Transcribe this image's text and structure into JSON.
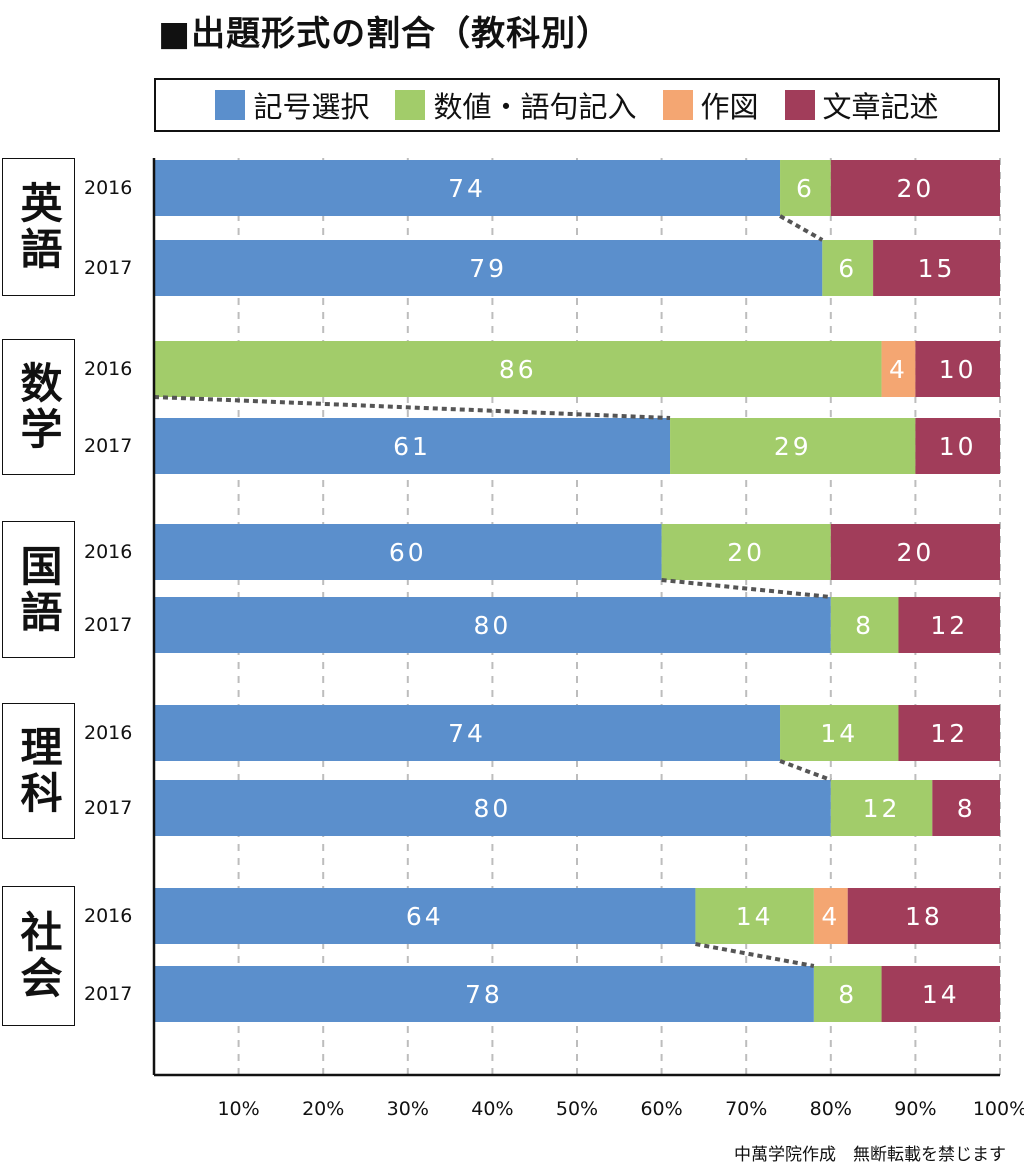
{
  "title": "■出題形式の割合（教科別）",
  "footer": "中萬学院作成　無断転載を禁じます",
  "legend": [
    {
      "label": "記号選択",
      "color": "#5B8FCC"
    },
    {
      "label": "数値・語句記入",
      "color": "#A2CC6A"
    },
    {
      "label": "作図",
      "color": "#F4A672"
    },
    {
      "label": "文章記述",
      "color": "#A13D5A"
    }
  ],
  "subjects": [
    {
      "name": "英語",
      "years": [
        "2016",
        "2017"
      ]
    },
    {
      "name": "数学",
      "years": [
        "2016",
        "2017"
      ]
    },
    {
      "name": "国語",
      "years": [
        "2016",
        "2017"
      ]
    },
    {
      "name": "理科",
      "years": [
        "2016",
        "2017"
      ]
    },
    {
      "name": "社会",
      "years": [
        "2016",
        "2017"
      ]
    }
  ],
  "chart_data": {
    "type": "bar",
    "orientation": "horizontal",
    "stacked": true,
    "xlim": [
      0,
      100
    ],
    "x_ticks": [
      "10%",
      "20%",
      "30%",
      "40%",
      "50%",
      "60%",
      "70%",
      "80%",
      "90%",
      "100%"
    ],
    "grid": "vertical dashed",
    "legend_position": "top",
    "series_names": [
      "記号選択",
      "数値・語句記入",
      "作図",
      "文章記述"
    ],
    "colors": [
      "#5B8FCC",
      "#A2CC6A",
      "#F4A672",
      "#A13D5A"
    ],
    "rows": [
      {
        "subject": "英語",
        "year": "2016",
        "values": [
          74,
          6,
          0,
          20
        ]
      },
      {
        "subject": "英語",
        "year": "2017",
        "values": [
          79,
          6,
          0,
          15
        ]
      },
      {
        "subject": "数学",
        "year": "2016",
        "values": [
          0,
          86,
          4,
          10
        ]
      },
      {
        "subject": "数学",
        "year": "2017",
        "values": [
          61,
          29,
          0,
          10
        ]
      },
      {
        "subject": "国語",
        "year": "2016",
        "values": [
          60,
          20,
          0,
          20
        ]
      },
      {
        "subject": "国語",
        "year": "2017",
        "values": [
          80,
          8,
          0,
          12
        ]
      },
      {
        "subject": "理科",
        "year": "2016",
        "values": [
          74,
          14,
          0,
          12
        ]
      },
      {
        "subject": "理科",
        "year": "2017",
        "values": [
          80,
          12,
          0,
          8
        ]
      },
      {
        "subject": "社会",
        "year": "2016",
        "values": [
          64,
          14,
          4,
          18
        ]
      },
      {
        "subject": "社会",
        "year": "2017",
        "values": [
          78,
          8,
          0,
          14
        ]
      }
    ]
  }
}
